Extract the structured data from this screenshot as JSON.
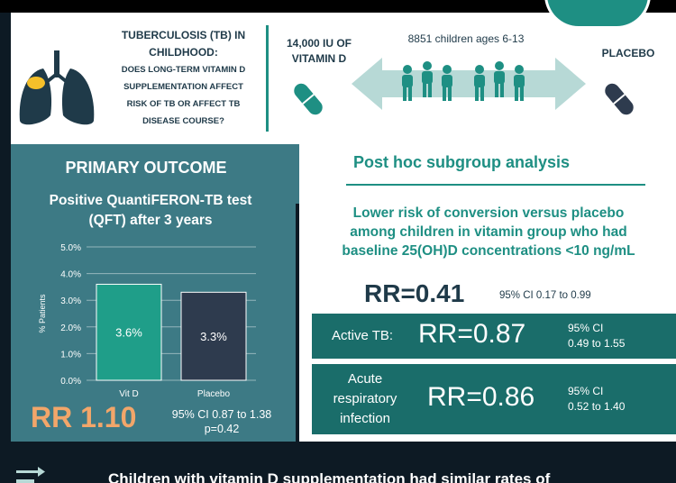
{
  "header": {
    "question_lines": [
      "TUBERCULOSIS (TB) IN",
      "CHILDHOOD:",
      "DOES LONG-TERM VITAMIN D",
      "SUPPLEMENTATION AFFECT",
      "RISK OF TB OR AFFECT TB",
      "DISEASE COURSE?"
    ],
    "dose": "14,000 IU OF VITAMIN D",
    "children": "8851 children ages 6-13",
    "placebo": "PLACEBO"
  },
  "primary": {
    "title": "PRIMARY OUTCOME",
    "subtitle_line1": "Positive QuantiFERON-TB test",
    "subtitle_line2": "(QFT) after 3 years",
    "rr": "RR 1.10",
    "ci": "95% CI 0.87 to 1.38",
    "p": "p=0.42"
  },
  "chart_data": {
    "type": "bar",
    "categories": [
      "Vit D",
      "Placebo"
    ],
    "values": [
      3.6,
      3.3
    ],
    "data_labels": [
      "3.6%",
      "3.3%"
    ],
    "ylabel": "% Patients",
    "ylim": [
      0,
      5
    ],
    "yticks": [
      "0.0%",
      "1.0%",
      "2.0%",
      "3.0%",
      "4.0%",
      "5.0%"
    ],
    "colors": [
      "#1f9e89",
      "#2e3b4e"
    ],
    "grid": true
  },
  "posthoc": {
    "title": "Post hoc subgroup analysis",
    "finding_line1": "Lower risk of conversion versus placebo",
    "finding_line2": "among children in vitamin group who had",
    "finding_line3": "baseline 25(OH)D concentrations <10 ng/mL",
    "rr": "RR=0.41",
    "ci": "95% CI 0.17 to 0.99"
  },
  "outcomes": [
    {
      "label": "Active TB:",
      "rr": "RR=0.87",
      "ci_line1": "95% CI",
      "ci_line2": "0.49 to 1.55"
    },
    {
      "label_line1": "Acute",
      "label_line2": "respiratory",
      "label_line3": "infection",
      "rr": "RR=0.86",
      "ci_line1": "95% CI",
      "ci_line2": "0.52 to 1.40"
    }
  ],
  "conclusion": "Children with vitamin D supplementation had similar rates of",
  "colors": {
    "teal": "#1e8f83",
    "panel": "#3d7a85",
    "dark": "#1f3a49",
    "orange": "#f2a66a"
  }
}
